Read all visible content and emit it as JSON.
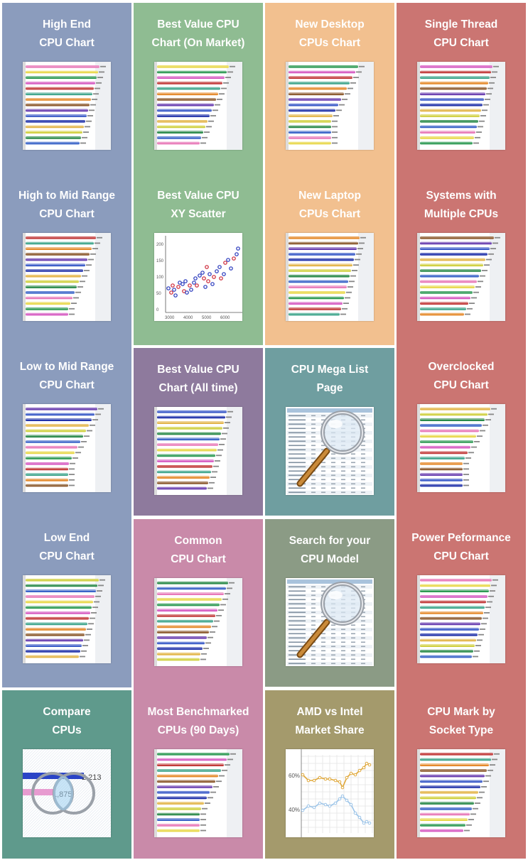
{
  "colors": {
    "slate_blue": "#8b9cbd",
    "sage_green": "#8fbc92",
    "peach": "#f2c08f",
    "salmon_red": "#cb7572",
    "plum": "#8e7a9d",
    "teal": "#6f9ea0",
    "pink": "#c98aa9",
    "grey_green": "#8b9b85",
    "sea_green": "#5f9a8c",
    "khaki": "#a49a6c"
  },
  "tiles": [
    {
      "id": "high-end",
      "line1": "High End",
      "line2": "CPU Chart",
      "thumb": "bars",
      "icon": "bar-chart-icon"
    },
    {
      "id": "best-value-market",
      "line1": "Best Value CPU",
      "line2": "Chart (On Market)",
      "thumb": "bars",
      "icon": "bar-chart-icon"
    },
    {
      "id": "new-desktop",
      "line1": "New Desktop",
      "line2": "CPUs Chart",
      "thumb": "bars",
      "icon": "bar-chart-icon"
    },
    {
      "id": "single-thread",
      "line1": "Single Thread",
      "line2": "CPU Chart",
      "thumb": "bars",
      "icon": "bar-chart-icon"
    },
    {
      "id": "high-to-mid",
      "line1": "High to Mid Range",
      "line2": "CPU Chart",
      "thumb": "bars",
      "icon": "bar-chart-icon"
    },
    {
      "id": "best-value-scatter",
      "line1": "Best Value CPU",
      "line2": "XY Scatter",
      "thumb": "scatter",
      "icon": "scatter-plot-icon",
      "scatter": {
        "y_ticks": [
          "200",
          "150",
          "100",
          "50",
          "0"
        ],
        "x_ticks": [
          "3000",
          "4000",
          "5000",
          "6000"
        ]
      }
    },
    {
      "id": "new-laptop",
      "line1": "New Laptop",
      "line2": "CPUs Chart",
      "thumb": "bars",
      "icon": "bar-chart-icon"
    },
    {
      "id": "multiple-cpus",
      "line1": "Systems with",
      "line2": "Multiple CPUs",
      "thumb": "bars",
      "icon": "bar-chart-icon"
    },
    {
      "id": "low-to-mid",
      "line1": "Low to Mid Range",
      "line2": "CPU Chart",
      "thumb": "bars",
      "icon": "bar-chart-icon"
    },
    {
      "id": "best-value-alltime",
      "line1": "Best Value CPU",
      "line2": "Chart (All time)",
      "thumb": "bars",
      "icon": "bar-chart-icon"
    },
    {
      "id": "mega-list",
      "line1": "CPU Mega List",
      "line2": "Page",
      "thumb": "magnifier",
      "icon": "magnifying-glass-icon"
    },
    {
      "id": "overclocked",
      "line1": "Overclocked",
      "line2": "CPU Chart",
      "thumb": "bars",
      "icon": "bar-chart-icon"
    },
    {
      "id": "low-end",
      "line1": "Low End",
      "line2": "CPU Chart",
      "thumb": "bars",
      "icon": "bar-chart-icon"
    },
    {
      "id": "common",
      "line1": "Common",
      "line2": "CPU Chart",
      "thumb": "bars",
      "icon": "bar-chart-icon"
    },
    {
      "id": "search-model",
      "line1": "Search for your",
      "line2": "CPU Model",
      "thumb": "magnifier",
      "icon": "magnifying-glass-icon"
    },
    {
      "id": "power-performance",
      "line1": "Power Peformance",
      "line2": "CPU Chart",
      "thumb": "bars",
      "icon": "bar-chart-icon"
    },
    {
      "id": "compare",
      "line1": "Compare",
      "line2": "CPUs",
      "thumb": "compare",
      "icon": "compare-circles-icon",
      "compare": {
        "value_a": "2,213",
        "value_b": "1,875"
      }
    },
    {
      "id": "most-benchmarked",
      "line1": "Most Benchmarked",
      "line2": "CPUs (90 Days)",
      "thumb": "bars",
      "icon": "bar-chart-icon"
    },
    {
      "id": "amd-vs-intel",
      "line1": "AMD vs Intel",
      "line2": "Market Share",
      "thumb": "line",
      "icon": "line-chart-icon",
      "line": {
        "labels": [
          "60%",
          "40%"
        ]
      }
    },
    {
      "id": "socket-type",
      "line1": "CPU Mark by",
      "line2": "Socket Type",
      "thumb": "bars",
      "icon": "bar-chart-icon"
    }
  ]
}
